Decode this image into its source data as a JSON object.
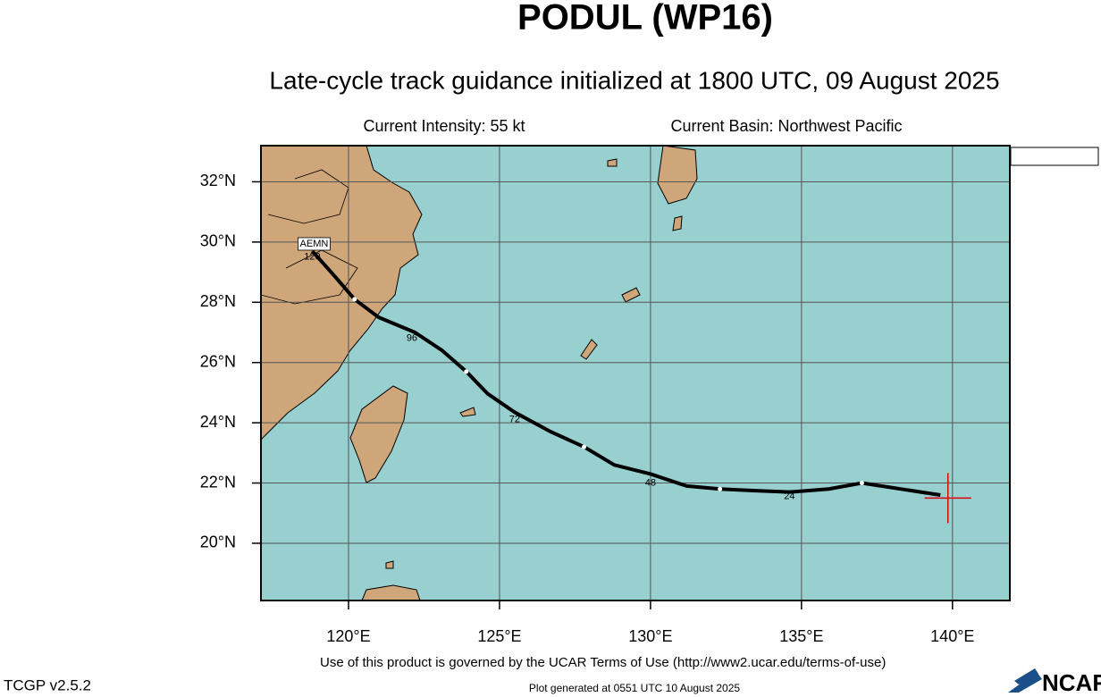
{
  "chart_data": {
    "type": "track",
    "title": "PODUL (WP16)",
    "subtitle": "Late-cycle track guidance initialized at 1800 UTC, 09 August 2025",
    "intensity": "Current Intensity: 55 kt",
    "basin": "Current Basin: Northwest Pacific",
    "xlim": [
      117.1,
      141.9
    ],
    "ylim": [
      18.1,
      33.2
    ],
    "xticks": [
      {
        "value": 120,
        "label": "120°E"
      },
      {
        "value": 125,
        "label": "125°E"
      },
      {
        "value": 130,
        "label": "130°E"
      },
      {
        "value": 135,
        "label": "135°E"
      },
      {
        "value": 140,
        "label": "140°E"
      }
    ],
    "yticks": [
      {
        "value": 20,
        "label": "20°N"
      },
      {
        "value": 22,
        "label": "22°N"
      },
      {
        "value": 24,
        "label": "24°N"
      },
      {
        "value": 26,
        "label": "26°N"
      },
      {
        "value": 28,
        "label": "28°N"
      },
      {
        "value": 30,
        "label": "30°N"
      },
      {
        "value": 32,
        "label": "32°N"
      }
    ],
    "grid": true,
    "legend": "top-right",
    "series": [
      {
        "name": "AEMN",
        "color": "#000000",
        "x": [
          139.6,
          137.0,
          135.9,
          134.6,
          133.4,
          132.3,
          131.2,
          130.0,
          128.8,
          127.8,
          126.7,
          125.5,
          124.6,
          123.9,
          123.1,
          122.2,
          121.0,
          120.2,
          119.6,
          118.8
        ],
        "values": [
          21.6,
          22.0,
          21.8,
          21.7,
          21.75,
          21.8,
          21.9,
          22.3,
          22.6,
          23.2,
          23.7,
          24.35,
          24.97,
          25.7,
          26.4,
          27.0,
          27.5,
          28.1,
          28.8,
          29.7
        ]
      }
    ],
    "markers": {
      "x": [
        137.0,
        132.3,
        127.8,
        123.9,
        120.2
      ],
      "values": [
        22.0,
        21.8,
        23.2,
        25.7,
        28.1
      ]
    },
    "hour_labels": [
      {
        "text": "24",
        "x": 134.6,
        "y": 21.55
      },
      {
        "text": "48",
        "x": 130.0,
        "y": 22.0
      },
      {
        "text": "72",
        "x": 125.5,
        "y": 24.1
      },
      {
        "text": "96",
        "x": 122.1,
        "y": 26.8
      },
      {
        "text": "120",
        "x": 118.8,
        "y": 29.5
      }
    ],
    "current_position": {
      "x": 139.85,
      "y": 21.5
    },
    "terms": "Use of this product is governed by the UCAR Terms of Use (http://www2.ucar.edu/terms-of-use)",
    "version": "TCGP v2.5.2",
    "generated": "Plot generated at 0551 UTC   10 August 2025",
    "logo": "NCAR"
  }
}
